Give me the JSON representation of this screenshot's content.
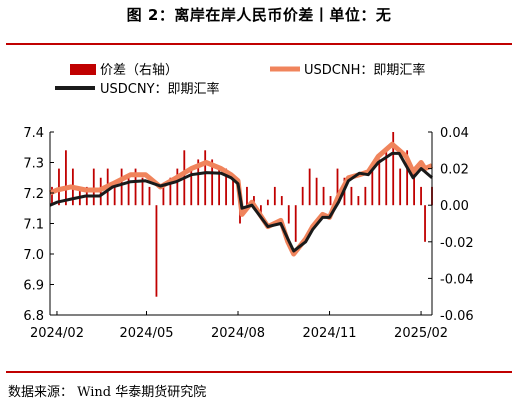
{
  "title": "图 2：离岸在岸人民币价差丨单位：无",
  "source": "数据来源：  Wind 华泰期货研究院",
  "colors": {
    "rule": "#c00000",
    "spread": "#c00000",
    "cnh": "#f0845c",
    "cny": "#1a1a1a"
  },
  "chart_data": {
    "type": "line",
    "legend": {
      "placement": "top",
      "entries": [
        "价差（右轴）",
        "USDCNH：即期汇率",
        "USDCNY：即期汇率"
      ]
    },
    "x_ticks": [
      "2024/02",
      "2024/05",
      "2024/08",
      "2024/11",
      "2025/02"
    ],
    "y_left": {
      "range": [
        6.8,
        7.4
      ],
      "ticks": [
        "7.4",
        "7.3",
        "7.2",
        "7.1",
        "7.0",
        "6.9",
        "6.8"
      ]
    },
    "y_right": {
      "range": [
        -0.06,
        0.04
      ],
      "ticks": [
        "0.04",
        "0.02",
        "0.00",
        "-0.02",
        "-0.04",
        "-0.06"
      ]
    },
    "x_range": [
      "2024-01-25",
      "2025-02-12"
    ],
    "series": [
      {
        "name": "USDCNY：即期汇率",
        "axis": "left",
        "points": [
          [
            "2024-01-25",
            7.16
          ],
          [
            "2024-02-01",
            7.17
          ],
          [
            "2024-02-15",
            7.18
          ],
          [
            "2024-03-01",
            7.19
          ],
          [
            "2024-03-15",
            7.19
          ],
          [
            "2024-03-28",
            7.22
          ],
          [
            "2024-04-15",
            7.237
          ],
          [
            "2024-04-30",
            7.24
          ],
          [
            "2024-05-15",
            7.223
          ],
          [
            "2024-05-31",
            7.237
          ],
          [
            "2024-06-15",
            7.26
          ],
          [
            "2024-06-30",
            7.267
          ],
          [
            "2024-07-15",
            7.265
          ],
          [
            "2024-07-25",
            7.25
          ],
          [
            "2024-08-01",
            7.23
          ],
          [
            "2024-08-05",
            7.15
          ],
          [
            "2024-08-15",
            7.16
          ],
          [
            "2024-08-31",
            7.09
          ],
          [
            "2024-09-13",
            7.1
          ],
          [
            "2024-09-20",
            7.05
          ],
          [
            "2024-09-26",
            7.01
          ],
          [
            "2024-10-08",
            7.04
          ],
          [
            "2024-10-15",
            7.08
          ],
          [
            "2024-10-25",
            7.12
          ],
          [
            "2024-11-01",
            7.12
          ],
          [
            "2024-11-10",
            7.17
          ],
          [
            "2024-11-20",
            7.24
          ],
          [
            "2024-12-01",
            7.265
          ],
          [
            "2024-12-10",
            7.26
          ],
          [
            "2024-12-20",
            7.3
          ],
          [
            "2025-01-03",
            7.33
          ],
          [
            "2025-01-10",
            7.33
          ],
          [
            "2025-01-17",
            7.29
          ],
          [
            "2025-01-24",
            7.25
          ],
          [
            "2025-02-01",
            7.28
          ],
          [
            "2025-02-05",
            7.27
          ],
          [
            "2025-02-12",
            7.25
          ]
        ]
      },
      {
        "name": "USDCNH：即期汇率",
        "axis": "left",
        "points": [
          [
            "2024-01-25",
            7.2
          ],
          [
            "2024-02-01",
            7.21
          ],
          [
            "2024-02-15",
            7.22
          ],
          [
            "2024-03-01",
            7.21
          ],
          [
            "2024-03-15",
            7.21
          ],
          [
            "2024-03-28",
            7.23
          ],
          [
            "2024-04-15",
            7.26
          ],
          [
            "2024-04-30",
            7.26
          ],
          [
            "2024-05-15",
            7.22
          ],
          [
            "2024-05-31",
            7.25
          ],
          [
            "2024-06-15",
            7.28
          ],
          [
            "2024-06-30",
            7.3
          ],
          [
            "2024-07-15",
            7.28
          ],
          [
            "2024-07-25",
            7.26
          ],
          [
            "2024-08-01",
            7.24
          ],
          [
            "2024-08-05",
            7.13
          ],
          [
            "2024-08-15",
            7.17
          ],
          [
            "2024-08-31",
            7.09
          ],
          [
            "2024-09-13",
            7.11
          ],
          [
            "2024-09-20",
            7.04
          ],
          [
            "2024-09-26",
            7.0
          ],
          [
            "2024-10-08",
            7.05
          ],
          [
            "2024-10-15",
            7.09
          ],
          [
            "2024-10-25",
            7.13
          ],
          [
            "2024-11-01",
            7.12
          ],
          [
            "2024-11-10",
            7.19
          ],
          [
            "2024-11-20",
            7.25
          ],
          [
            "2024-12-01",
            7.26
          ],
          [
            "2024-12-10",
            7.27
          ],
          [
            "2024-12-20",
            7.32
          ],
          [
            "2025-01-03",
            7.36
          ],
          [
            "2025-01-10",
            7.34
          ],
          [
            "2025-01-17",
            7.32
          ],
          [
            "2025-01-24",
            7.27
          ],
          [
            "2025-02-01",
            7.3
          ],
          [
            "2025-02-05",
            7.28
          ],
          [
            "2025-02-12",
            7.29
          ]
        ]
      },
      {
        "name": "价差（右轴）",
        "axis": "right",
        "type": "bar",
        "points": [
          [
            "2024-01-27",
            0.01
          ],
          [
            "2024-02-03",
            0.02
          ],
          [
            "2024-02-10",
            0.03
          ],
          [
            "2024-02-17",
            0.02
          ],
          [
            "2024-02-24",
            0.01
          ],
          [
            "2024-03-02",
            0.01
          ],
          [
            "2024-03-09",
            0.02
          ],
          [
            "2024-03-16",
            0.015
          ],
          [
            "2024-03-23",
            0.02
          ],
          [
            "2024-03-30",
            0.01
          ],
          [
            "2024-04-06",
            0.02
          ],
          [
            "2024-04-13",
            0.015
          ],
          [
            "2024-04-20",
            0.02
          ],
          [
            "2024-04-27",
            0.015
          ],
          [
            "2024-05-04",
            0.01
          ],
          [
            "2024-05-11",
            -0.05
          ],
          [
            "2024-05-18",
            0.01
          ],
          [
            "2024-05-25",
            0.015
          ],
          [
            "2024-06-01",
            0.02
          ],
          [
            "2024-06-08",
            0.03
          ],
          [
            "2024-06-15",
            0.02
          ],
          [
            "2024-06-22",
            0.025
          ],
          [
            "2024-06-29",
            0.03
          ],
          [
            "2024-07-06",
            0.025
          ],
          [
            "2024-07-13",
            0.02
          ],
          [
            "2024-07-20",
            0.02
          ],
          [
            "2024-07-27",
            0.015
          ],
          [
            "2024-08-03",
            -0.01
          ],
          [
            "2024-08-10",
            0.01
          ],
          [
            "2024-08-17",
            0.005
          ],
          [
            "2024-08-24",
            -0.005
          ],
          [
            "2024-08-31",
            0.003
          ],
          [
            "2024-09-07",
            0.01
          ],
          [
            "2024-09-14",
            0.005
          ],
          [
            "2024-09-21",
            -0.01
          ],
          [
            "2024-09-28",
            -0.02
          ],
          [
            "2024-10-05",
            0.01
          ],
          [
            "2024-10-12",
            0.02
          ],
          [
            "2024-10-19",
            0.015
          ],
          [
            "2024-10-26",
            0.01
          ],
          [
            "2024-11-02",
            0.005
          ],
          [
            "2024-11-09",
            0.02
          ],
          [
            "2024-11-16",
            0.015
          ],
          [
            "2024-11-23",
            0.01
          ],
          [
            "2024-11-30",
            0.005
          ],
          [
            "2024-12-07",
            0.01
          ],
          [
            "2024-12-14",
            0.02
          ],
          [
            "2024-12-21",
            0.025
          ],
          [
            "2024-12-28",
            0.03
          ],
          [
            "2025-01-04",
            0.04
          ],
          [
            "2025-01-11",
            0.02
          ],
          [
            "2025-01-18",
            0.03
          ],
          [
            "2025-01-25",
            0.02
          ],
          [
            "2025-02-01",
            0.01
          ],
          [
            "2025-02-05",
            -0.02
          ],
          [
            "2025-02-12",
            0.01
          ]
        ]
      }
    ]
  }
}
